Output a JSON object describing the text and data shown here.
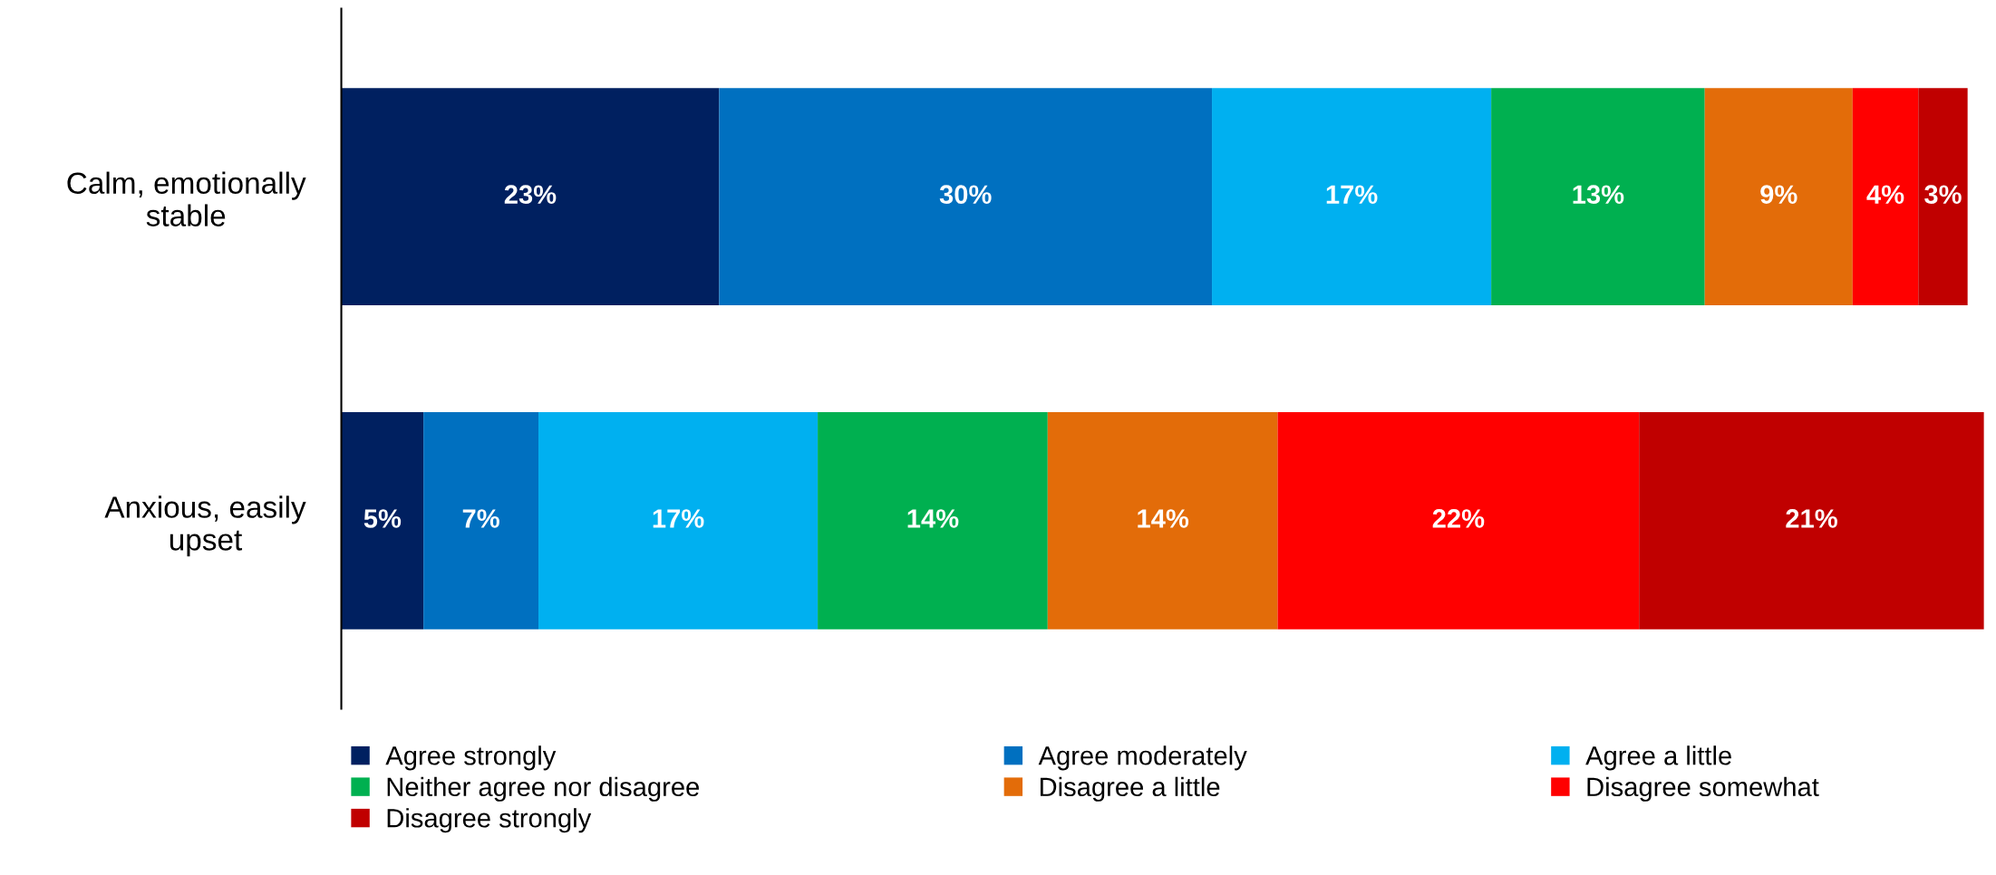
{
  "chart_data": {
    "type": "bar",
    "orientation": "horizontal",
    "stacked": true,
    "categories": [
      "Calm, emotionally stable",
      "Anxious, easily upset"
    ],
    "series": [
      {
        "name": "Agree strongly",
        "color": "#002060",
        "values": [
          23,
          5
        ],
        "value_labels": [
          "23%",
          "5%"
        ]
      },
      {
        "name": "Agree moderately",
        "color": "#0070c0",
        "values": [
          30,
          7
        ],
        "value_labels": [
          "30%",
          "7%"
        ]
      },
      {
        "name": "Agree a little",
        "color": "#00b0f0",
        "values": [
          17,
          17
        ],
        "value_labels": [
          "17%",
          "17%"
        ]
      },
      {
        "name": "Neither agree nor disagree",
        "color": "#00b050",
        "values": [
          13,
          14
        ],
        "value_labels": [
          "13%",
          "14%"
        ]
      },
      {
        "name": "Disagree a little",
        "color": "#e36c09",
        "values": [
          9,
          14
        ],
        "value_labels": [
          "9%",
          "14%"
        ]
      },
      {
        "name": "Disagree somewhat",
        "color": "#ff0000",
        "values": [
          4,
          22
        ],
        "value_labels": [
          "4%",
          "22%"
        ]
      },
      {
        "name": "Disagree strongly",
        "color": "#c00000",
        "values": [
          3,
          21
        ],
        "value_labels": [
          "3%",
          "21%"
        ]
      }
    ],
    "legend": "bottom",
    "tick_labels": "y"
  }
}
